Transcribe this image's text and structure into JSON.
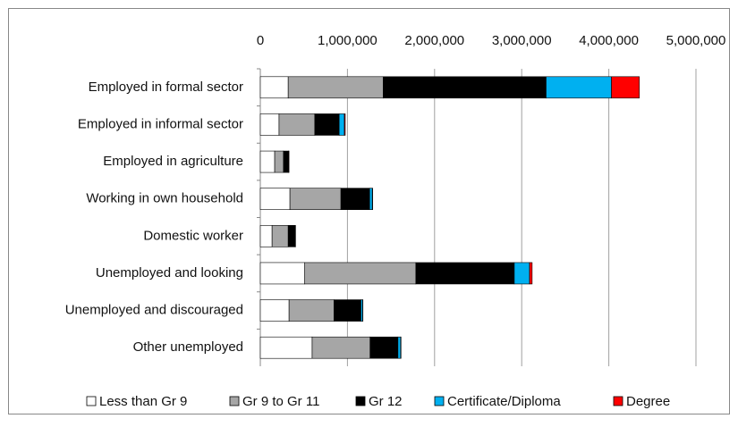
{
  "chart_data": {
    "type": "stacked-barh",
    "categories": [
      "Employed in formal sector",
      "Employed in informal sector",
      "Employed in agriculture",
      "Working in own household",
      "Domestic worker",
      "Unemployed and looking",
      "Unemployed and discouraged",
      "Other unemployed"
    ],
    "series": [
      {
        "name": "Less than Gr 9",
        "color": "#ffffff",
        "values": [
          320000,
          215000,
          165000,
          340000,
          135000,
          510000,
          330000,
          595000
        ]
      },
      {
        "name": "Gr 9 to Gr 11",
        "color": "#a6a6a6",
        "values": [
          1090000,
          410000,
          100000,
          585000,
          185000,
          1275000,
          515000,
          665000
        ]
      },
      {
        "name": "Gr 12",
        "color": "#000000",
        "values": [
          1870000,
          280000,
          60000,
          330000,
          80000,
          1130000,
          310000,
          320000
        ]
      },
      {
        "name": "Certificate/Diploma",
        "color": "#00b0f0",
        "values": [
          750000,
          60000,
          3000,
          30000,
          3000,
          175000,
          20000,
          30000
        ]
      },
      {
        "name": "Degree",
        "color": "#ff0000",
        "values": [
          320000,
          10000,
          1000,
          5000,
          1000,
          30000,
          3000,
          5000
        ]
      }
    ],
    "xlim": [
      0,
      5000000
    ],
    "xticks": [
      0,
      {
        "value": 1000000,
        "label": "1,000,000"
      },
      {
        "value": 2000000,
        "label": "2,000,000"
      },
      {
        "value": 3000000,
        "label": "3,000,000"
      },
      {
        "value": 4000000,
        "label": "4,000,000"
      },
      {
        "value": 5000000,
        "label": "5,000,000"
      }
    ],
    "grid": true,
    "legend": "bottom"
  }
}
